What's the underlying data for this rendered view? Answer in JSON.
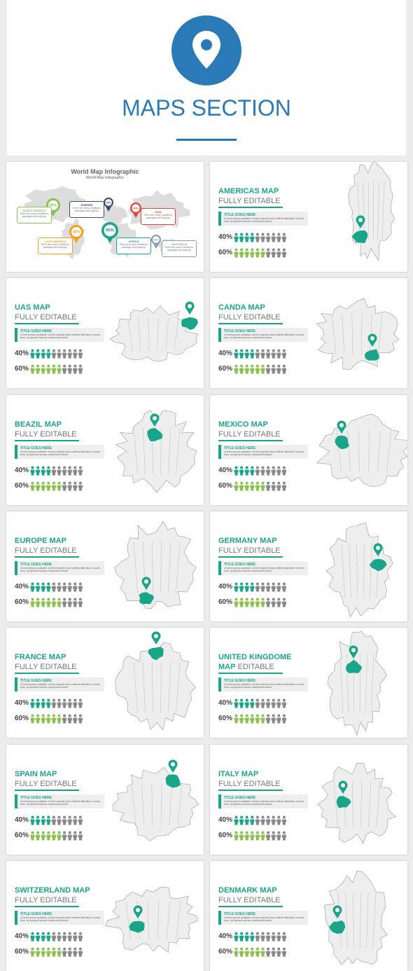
{
  "header": {
    "title": "MAPS SECTION"
  },
  "world_slide": {
    "title": "World Map Infographic",
    "subtitle": "World Map Infographic",
    "callouts": [
      {
        "name": "NORTH AMERICA",
        "text": "There are many variations, passages but majority."
      },
      {
        "name": "EUROPE",
        "text": "There are many variations, passages but majority."
      },
      {
        "name": "ASIA",
        "text": "There are many variations, passages but majority."
      },
      {
        "name": "LATIN AMERICA",
        "text": "There are many variations, passages but majority."
      },
      {
        "name": "AFRICA",
        "text": "There are many variations, passages but majority."
      },
      {
        "name": "AUSTRALIA",
        "text": "There are many variations, passages but majority."
      }
    ],
    "pins": [
      "85%",
      "70%",
      "60%",
      "40%",
      "90%",
      "30%"
    ]
  },
  "box_title": "TITLE GOES HERE",
  "box_text": "of lorem ipsum available, but the majority have suffered alteration in some form, by injected humour randomized words.",
  "stats": [
    {
      "value": 40,
      "label": "40%"
    },
    {
      "value": 60,
      "label": "60%"
    }
  ],
  "slides": [
    {
      "title": "AMERICAS MAP",
      "subtitle": "FULLY EDITABLE"
    },
    {
      "title": "UAS MAP",
      "subtitle": "FULLY EDITABLE"
    },
    {
      "title": "CANDA MAP",
      "subtitle": "FULLY EDITABLE"
    },
    {
      "title": "BEAZIL MAP",
      "subtitle": "FULLY EDITABLE"
    },
    {
      "title": "MEXICO MAP",
      "subtitle": "FULLY EDITABLE"
    },
    {
      "title": "EUROPE MAP",
      "subtitle": "FULLY EDITABLE"
    },
    {
      "title": "GERMANY MAP",
      "subtitle": "FULLY EDITABLE"
    },
    {
      "title": "FRANCE MAP",
      "subtitle": "FULLY EDITABLE"
    },
    {
      "title": "UNITED KINGDOME",
      "title_line2": "MAP",
      "subtitle": "EDITABLE"
    },
    {
      "title": "SPAIN MAP",
      "subtitle": "FULLY EDITABLE"
    },
    {
      "title": "ITALY MAP",
      "subtitle": "FULLY EDITABLE"
    },
    {
      "title": "SWITZERLAND MAP",
      "subtitle": "FULLY EDITABLE"
    },
    {
      "title": "DENMARK MAP",
      "subtitle": "FULLY EDITABLE"
    }
  ]
}
